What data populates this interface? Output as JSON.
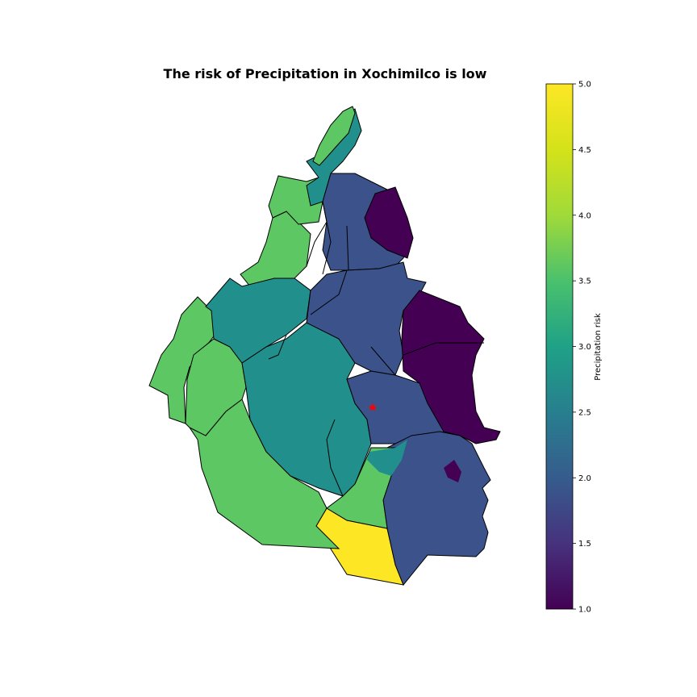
{
  "title": "The risk of Precipitation in Xochimilco is low",
  "colorbar": {
    "label": "Precipitation risk",
    "min": 1.0,
    "max": 5.0,
    "ticks": [
      "1.0",
      "1.5",
      "2.0",
      "2.5",
      "3.0",
      "3.5",
      "4.0",
      "4.5",
      "5.0"
    ],
    "colormap": "viridis"
  },
  "map": {
    "marker": {
      "color": "#ff0000",
      "shape": "star"
    },
    "regions": [
      {
        "name": "north-region",
        "risk": 3.0
      },
      {
        "name": "north-east-region",
        "risk": 2.0
      },
      {
        "name": "east-region",
        "risk": 1.0
      },
      {
        "name": "central-region",
        "risk": 2.0
      },
      {
        "name": "west-region",
        "risk": 4.0
      },
      {
        "name": "south-west-region",
        "risk": 4.0
      },
      {
        "name": "south-central-region",
        "risk": 3.0
      },
      {
        "name": "south-east-region",
        "risk": 2.0
      },
      {
        "name": "southern-tip-region",
        "risk": 5.0
      }
    ]
  },
  "colors": {
    "risk_1": "#440154",
    "risk_2": "#3b528b",
    "risk_3": "#21908d",
    "risk_4": "#5dc863",
    "risk_5": "#fde725",
    "border": "#000000"
  }
}
